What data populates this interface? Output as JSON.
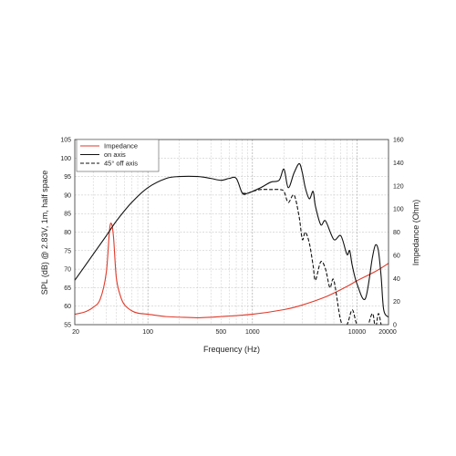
{
  "chart_data": {
    "type": "line",
    "xlabel": "Frequency (Hz)",
    "ylabel": "SPL (dB) @ 2.83V, 1m, half space",
    "y2label": "Impedance (Ohm)",
    "xscale": "log",
    "xlim": [
      20,
      20000
    ],
    "ylim": [
      55,
      105
    ],
    "y2lim": [
      0,
      160
    ],
    "grid": true,
    "legend_position": "top-left",
    "x_tick_labels": [
      "20",
      "100",
      "500",
      "1000",
      "10000",
      "20000"
    ],
    "y_tick_labels": [
      "55",
      "60",
      "65",
      "70",
      "75",
      "80",
      "85",
      "90",
      "95",
      "100",
      "105"
    ],
    "y2_tick_labels": [
      "0",
      "20",
      "40",
      "60",
      "80",
      "100",
      "120",
      "140",
      "160"
    ],
    "series": [
      {
        "name": "Impedance",
        "axis": "right",
        "color": "#e03a2a",
        "dash": "solid",
        "x": [
          20,
          25,
          30,
          35,
          40,
          43,
          45,
          47,
          50,
          55,
          60,
          70,
          80,
          100,
          150,
          200,
          300,
          500,
          1000,
          2000,
          3000,
          5000,
          8000,
          10000,
          15000,
          20000
        ],
        "y": [
          9,
          11,
          15,
          22,
          45,
          82,
          87,
          75,
          40,
          24,
          17,
          12,
          10,
          9,
          7,
          6.5,
          6,
          7,
          9,
          13,
          17,
          24,
          33,
          38,
          46,
          53
        ]
      },
      {
        "name": "on axis",
        "axis": "left",
        "color": "#111111",
        "dash": "solid",
        "x": [
          20,
          30,
          40,
          50,
          70,
          100,
          150,
          200,
          300,
          400,
          500,
          600,
          700,
          800,
          900,
          1000,
          1200,
          1500,
          1800,
          2000,
          2200,
          2500,
          2800,
          3000,
          3200,
          3500,
          3800,
          4000,
          4500,
          5000,
          6000,
          7000,
          8000,
          8500,
          9000,
          10000,
          12000,
          14000,
          15000,
          16000,
          17000,
          18000,
          20000
        ],
        "y": [
          67,
          74,
          79,
          83,
          88,
          92,
          94.5,
          95,
          95,
          94.5,
          94,
          94.5,
          94.5,
          90.5,
          90.5,
          91,
          92,
          93.5,
          94,
          97,
          92,
          96,
          98.5,
          96,
          92,
          89,
          91,
          87,
          82,
          83,
          78,
          79,
          74,
          75,
          71,
          66,
          62,
          73,
          76.5,
          75,
          68,
          59,
          57
        ]
      },
      {
        "name": "45° off axis",
        "axis": "left",
        "color": "#111111",
        "dash": "4,2",
        "x": [
          800,
          900,
          1000,
          1200,
          1500,
          1800,
          2000,
          2200,
          2500,
          2800,
          3000,
          3200,
          3500,
          3800,
          4000,
          4500,
          5000,
          5500,
          6000,
          7000,
          8000,
          9000,
          10000,
          12000,
          14000,
          15000,
          16000,
          17000,
          18000
        ],
        "y": [
          90.5,
          90.5,
          91,
          91.5,
          91.5,
          91.5,
          91,
          88,
          90,
          84,
          78,
          80,
          77,
          71,
          67,
          72,
          70,
          65,
          67,
          56,
          55,
          59,
          55,
          53,
          58,
          54,
          58,
          55,
          52
        ]
      }
    ]
  }
}
